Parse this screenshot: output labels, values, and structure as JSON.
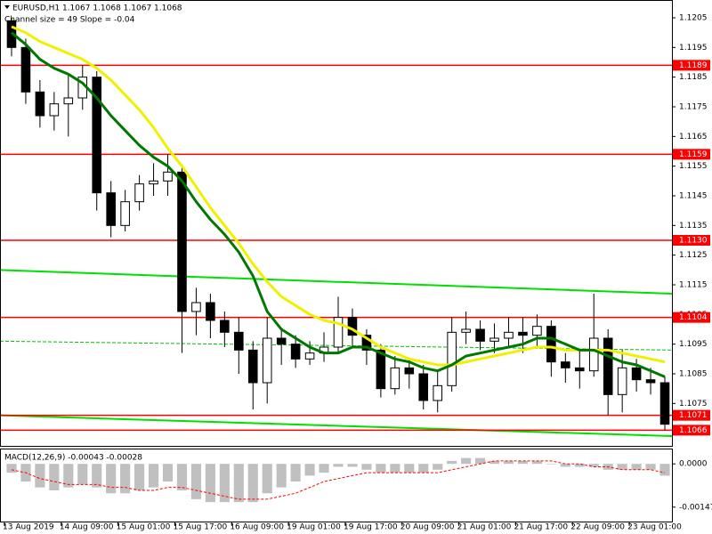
{
  "chart_data": [
    {
      "type": "candlestick",
      "title": "EURUSD,H1  1.1067 1.1068 1.1067 1.1068",
      "subtitle": "Channel size = 49 Slope = -0.04",
      "categories": [
        "13 Aug 2019",
        null,
        null,
        null,
        "14 Aug 09:00",
        null,
        null,
        null,
        "15 Aug 01:00",
        null,
        null,
        null,
        "15 Aug 17:00",
        null,
        null,
        null,
        "16 Aug 09:00",
        null,
        null,
        null,
        "19 Aug 01:00",
        null,
        null,
        null,
        "19 Aug 17:00",
        null,
        null,
        null,
        "20 Aug 09:00",
        null,
        null,
        null,
        "21 Aug 01:00",
        null,
        null,
        null,
        "21 Aug 17:00",
        null,
        null,
        null,
        "22 Aug 09:00",
        null,
        null,
        null,
        "23 Aug 01:00",
        null,
        null
      ],
      "open": [
        1.1204,
        1.1195,
        1.118,
        1.1172,
        1.1176,
        1.1178,
        1.1185,
        1.1146,
        1.1135,
        1.1143,
        1.1149,
        1.115,
        1.1153,
        1.1106,
        1.1109,
        1.1103,
        1.1099,
        1.1093,
        1.1082,
        1.1097,
        1.1095,
        1.109,
        1.1092,
        1.1094,
        1.1104,
        1.1098,
        1.1093,
        1.108,
        1.1087,
        1.1085,
        1.1076,
        1.1081,
        1.1099,
        1.11,
        1.1096,
        1.1097,
        1.1099,
        1.1098,
        1.1101,
        1.1089,
        1.1087,
        1.1086,
        1.1097,
        1.1078,
        1.1087,
        1.1083,
        1.1082
      ],
      "high": [
        1.1205,
        1.1198,
        1.1184,
        1.118,
        1.1186,
        1.1189,
        1.1187,
        1.115,
        1.1147,
        1.1152,
        1.1156,
        1.1159,
        1.1155,
        1.1114,
        1.1112,
        1.1106,
        1.1104,
        1.1096,
        1.1104,
        1.11,
        1.1098,
        1.1096,
        1.1099,
        1.1111,
        1.1107,
        1.11,
        1.1095,
        1.1091,
        1.109,
        1.1088,
        1.1086,
        1.1104,
        1.1106,
        1.1103,
        1.1102,
        1.1104,
        1.1104,
        1.1105,
        1.1103,
        1.1092,
        1.1093,
        1.1112,
        1.11,
        1.1093,
        1.109,
        1.1087,
        1.1084
      ],
      "low": [
        1.1192,
        1.1176,
        1.1168,
        1.1167,
        1.1165,
        1.1174,
        1.114,
        1.1131,
        1.1133,
        1.114,
        1.1145,
        1.1145,
        1.1092,
        1.1098,
        1.1097,
        1.1094,
        1.1085,
        1.1073,
        1.1075,
        1.1088,
        1.1087,
        1.1088,
        1.1089,
        1.1092,
        1.1094,
        1.1088,
        1.1077,
        1.1078,
        1.108,
        1.1073,
        1.1072,
        1.1079,
        1.1095,
        1.1093,
        1.1092,
        1.1094,
        1.1092,
        1.1094,
        1.1084,
        1.1082,
        1.108,
        1.1084,
        1.1071,
        1.1072,
        1.1079,
        1.1078,
        1.1066
      ],
      "close": [
        1.1195,
        1.118,
        1.1172,
        1.1176,
        1.1178,
        1.1185,
        1.1146,
        1.1135,
        1.1143,
        1.1149,
        1.115,
        1.1153,
        1.1106,
        1.1109,
        1.1103,
        1.1099,
        1.1093,
        1.1082,
        1.1097,
        1.1095,
        1.109,
        1.1092,
        1.1094,
        1.1104,
        1.1098,
        1.1093,
        1.108,
        1.1087,
        1.1085,
        1.1076,
        1.1081,
        1.1099,
        1.11,
        1.1096,
        1.1097,
        1.1099,
        1.1098,
        1.1101,
        1.1089,
        1.1087,
        1.1086,
        1.1097,
        1.1078,
        1.1087,
        1.1083,
        1.1082,
        1.1068
      ],
      "up_color": "#ffffff",
      "down_color": "#000000",
      "moving_averages": [
        {
          "color": "#f0f000",
          "values": [
            1.1202,
            1.12,
            1.1197,
            1.1195,
            1.1193,
            1.1191,
            1.1188,
            1.1184,
            1.1179,
            1.1174,
            1.1168,
            1.1161,
            1.1155,
            1.1148,
            1.1141,
            1.1135,
            1.1129,
            1.1122,
            1.1116,
            1.1111,
            1.1108,
            1.1105,
            1.1103,
            1.1102,
            1.11,
            1.1097,
            1.1094,
            1.1092,
            1.109,
            1.1089,
            1.1088,
            1.1088,
            1.1089,
            1.109,
            1.1091,
            1.1092,
            1.1093,
            1.1094,
            1.1094,
            1.1093,
            1.1093,
            1.1093,
            1.1093,
            1.1092,
            1.1091,
            1.109,
            1.1089
          ]
        },
        {
          "color": "#007800",
          "values": [
            1.12,
            1.1196,
            1.1191,
            1.1188,
            1.1186,
            1.1183,
            1.1178,
            1.1172,
            1.1167,
            1.1162,
            1.1158,
            1.1155,
            1.115,
            1.1143,
            1.1137,
            1.1132,
            1.1126,
            1.1118,
            1.1106,
            1.11,
            1.1097,
            1.1094,
            1.1092,
            1.1092,
            1.1094,
            1.1094,
            1.1092,
            1.109,
            1.1089,
            1.1087,
            1.1086,
            1.1088,
            1.1091,
            1.1092,
            1.1093,
            1.1094,
            1.1095,
            1.1097,
            1.1097,
            1.1095,
            1.1093,
            1.1093,
            1.1091,
            1.1089,
            1.1088,
            1.1086,
            1.1084
          ]
        }
      ],
      "trend_lines": [
        {
          "color": "#00e000",
          "values": [
            1.112,
            1.1112
          ]
        },
        {
          "color": "#00e000",
          "values": [
            1.1071,
            1.1064
          ]
        },
        {
          "color": "#00c000",
          "dash": true,
          "values": [
            1.1096,
            1.1093
          ]
        }
      ],
      "level_color": "#ff0000",
      "levels": [
        1.1189,
        1.1159,
        {
          "value": 1.113,
          "label": "1.1130"
        },
        1.1104,
        1.1071,
        1.1066
      ],
      "ylim": [
        1.1061,
        1.1211
      ],
      "yticks": [
        1.1205,
        1.1195,
        1.1185,
        1.1175,
        1.1165,
        1.1155,
        1.1145,
        1.1135,
        1.1125,
        1.1115,
        1.1105,
        1.1095,
        1.1085,
        1.1075
      ]
    },
    {
      "type": "macd",
      "title": "MACD(12,26,9) -0.00043 -0.00028",
      "values": [
        -0.0003,
        -0.0006,
        -0.0008,
        -0.0009,
        -0.0008,
        -0.0007,
        -0.0008,
        -0.001,
        -0.001,
        -0.0009,
        -0.0008,
        -0.0006,
        -0.0009,
        -0.0012,
        -0.0013,
        -0.0013,
        -0.0013,
        -0.0013,
        -0.001,
        -0.0008,
        -0.0006,
        -0.0004,
        -0.0003,
        -0.0001,
        -0.0001,
        -0.0002,
        -0.0003,
        -0.0003,
        -0.0003,
        -0.0003,
        -0.0002,
        0.0001,
        0.0002,
        0.0002,
        0.0001,
        0.0001,
        0.0001,
        0.0001,
        0,
        -0.0001,
        -0.0001,
        -0.0001,
        -0.0002,
        -0.0002,
        -0.0002,
        -0.0002,
        -0.0004
      ],
      "signal": [
        -0.0002,
        -0.0003,
        -0.0005,
        -0.0006,
        -0.0007,
        -0.0007,
        -0.0007,
        -0.0008,
        -0.0008,
        -0.0009,
        -0.0009,
        -0.0008,
        -0.0008,
        -0.0009,
        -0.001,
        -0.0011,
        -0.0012,
        -0.0012,
        -0.0012,
        -0.0011,
        -0.001,
        -0.0008,
        -0.0006,
        -0.0005,
        -0.0004,
        -0.0003,
        -0.0003,
        -0.0003,
        -0.0003,
        -0.0003,
        -0.0003,
        -0.0002,
        -0.0001,
        0,
        0.0001,
        0.0001,
        0.0001,
        0.0001,
        0.0001,
        0,
        0,
        -0.0001,
        -0.0001,
        -0.0002,
        -0.0002,
        -0.0002,
        -0.0003
      ],
      "color": "#c0c0c0",
      "signal_color": "#ff0000",
      "ylim": [
        -0.00196,
        0.00049
      ],
      "yticks": [
        {
          "value": 0,
          "label": "0.0000"
        },
        -0.00147
      ]
    }
  ]
}
